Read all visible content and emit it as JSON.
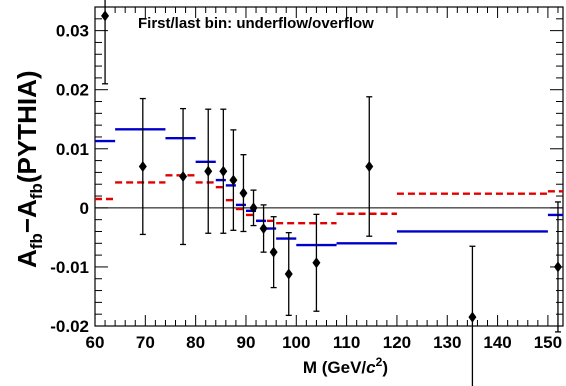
{
  "chart_data": {
    "type": "scatter",
    "annotation": "First/last bin: underflow/overflow",
    "xlabel": {
      "main": "M (GeV/",
      "italic": "c",
      "sup": "2",
      "close": ")"
    },
    "ylabel": {
      "a1": "A",
      "sub1": "fb",
      "mid": "−A",
      "sub2": "fb",
      "paren": "(PYTHIA)"
    },
    "xlim": [
      60,
      153
    ],
    "ylim": [
      -0.02,
      0.034
    ],
    "x_ticks": [
      60,
      70,
      80,
      90,
      100,
      110,
      120,
      130,
      140,
      150
    ],
    "y_ticks": [
      -0.02,
      -0.01,
      0,
      0.01,
      0.02,
      0.03
    ],
    "y_tick_labels": [
      "-0.02",
      "-0.01",
      "0",
      "0.01",
      "0.02",
      "0.03"
    ],
    "zero_line": true,
    "colors": {
      "data": "#000000",
      "blue": "#0000cc",
      "red": "#e00000"
    },
    "series": [
      {
        "style": "markers-errorbars",
        "points": [
          {
            "x": 62,
            "y": 0.0325,
            "err": 0.0115
          },
          {
            "x": 69.5,
            "y": 0.007,
            "err": 0.0115
          },
          {
            "x": 77.5,
            "y": 0.0053,
            "err": 0.0115
          },
          {
            "x": 82.5,
            "y": 0.0062,
            "err": 0.0105
          },
          {
            "x": 85.5,
            "y": 0.0062,
            "err": 0.0105
          },
          {
            "x": 87.5,
            "y": 0.0047,
            "err": 0.0085
          },
          {
            "x": 89.5,
            "y": 0.0025,
            "err": 0.0065
          },
          {
            "x": 91.5,
            "y": 0.0,
            "err": 0.003
          },
          {
            "x": 93.5,
            "y": -0.0035,
            "err": 0.004
          },
          {
            "x": 95.5,
            "y": -0.0075,
            "err": 0.006
          },
          {
            "x": 98.5,
            "y": -0.0112,
            "err": 0.007
          },
          {
            "x": 104,
            "y": -0.0093,
            "err": 0.0082
          },
          {
            "x": 114.5,
            "y": 0.007,
            "err": 0.0118
          },
          {
            "x": 135,
            "y": -0.0185,
            "err": 0.012
          },
          {
            "x": 152,
            "y": -0.01,
            "err": 0.011
          }
        ]
      },
      {
        "style": "solid-steps",
        "bins": [
          {
            "x0": 60,
            "x1": 64,
            "y": 0.0113
          },
          {
            "x0": 64,
            "x1": 74,
            "y": 0.0133
          },
          {
            "x0": 74,
            "x1": 80,
            "y": 0.0118
          },
          {
            "x0": 80,
            "x1": 84,
            "y": 0.0078
          },
          {
            "x0": 84,
            "x1": 86,
            "y": 0.0047
          },
          {
            "x0": 86,
            "x1": 88,
            "y": 0.0038
          },
          {
            "x0": 88,
            "x1": 90,
            "y": 0.0005
          },
          {
            "x0": 90,
            "x1": 92,
            "y": -0.0005
          },
          {
            "x0": 92,
            "x1": 94,
            "y": -0.0022
          },
          {
            "x0": 94,
            "x1": 96,
            "y": -0.0035
          },
          {
            "x0": 96,
            "x1": 100,
            "y": -0.0052
          },
          {
            "x0": 100,
            "x1": 108,
            "y": -0.0063
          },
          {
            "x0": 108,
            "x1": 120,
            "y": -0.006
          },
          {
            "x0": 120,
            "x1": 150,
            "y": -0.004
          },
          {
            "x0": 150,
            "x1": 153,
            "y": -0.0012
          }
        ]
      },
      {
        "style": "dashed-steps",
        "bins": [
          {
            "x0": 60,
            "x1": 64,
            "y": 0.0015
          },
          {
            "x0": 64,
            "x1": 74,
            "y": 0.0043
          },
          {
            "x0": 74,
            "x1": 80,
            "y": 0.0055
          },
          {
            "x0": 80,
            "x1": 84,
            "y": 0.0043
          },
          {
            "x0": 84,
            "x1": 86,
            "y": 0.0035
          },
          {
            "x0": 86,
            "x1": 88,
            "y": 0.0013
          },
          {
            "x0": 88,
            "x1": 90,
            "y": -0.0002
          },
          {
            "x0": 90,
            "x1": 92,
            "y": -0.0012
          },
          {
            "x0": 92,
            "x1": 96,
            "y": -0.0022
          },
          {
            "x0": 96,
            "x1": 108,
            "y": -0.0026
          },
          {
            "x0": 108,
            "x1": 120,
            "y": -0.001
          },
          {
            "x0": 120,
            "x1": 150,
            "y": 0.0024
          },
          {
            "x0": 150,
            "x1": 153,
            "y": 0.0028
          }
        ]
      }
    ]
  }
}
